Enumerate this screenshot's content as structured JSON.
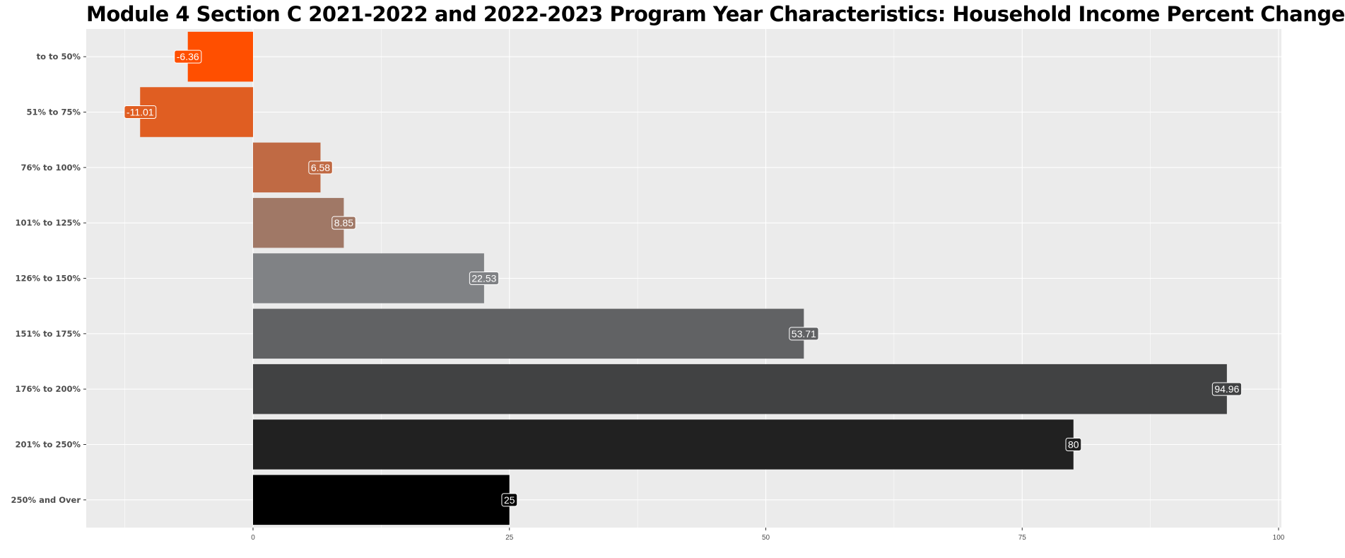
{
  "chart_data": {
    "type": "bar",
    "orientation": "horizontal",
    "title": "Module 4 Section C 2021-2022 and 2022-2023 Program Year Characteristics: Household Income Percent Change",
    "xlabel": "",
    "ylabel": "",
    "xlim": [
      -15,
      100
    ],
    "x_ticks": [
      0,
      25,
      50,
      75,
      100
    ],
    "grid": true,
    "legend": "none",
    "categories": [
      "to to 50%",
      "51% to 75%",
      "76% to 100%",
      "101% to 125%",
      "126% to 150%",
      "151% to 175%",
      "176% to 200%",
      "201% to 250%",
      "250% and Over"
    ],
    "values": [
      -6.36,
      -11.01,
      6.58,
      8.85,
      22.53,
      53.71,
      94.96,
      80,
      25
    ],
    "data_labels": [
      "-6.36",
      "-11.01",
      "6.58",
      "8.85",
      "22.53",
      "53.71",
      "94.96",
      "80",
      "25"
    ],
    "colors": [
      "#FF4F00",
      "#E05E22",
      "#C06A44",
      "#A07866",
      "#808285",
      "#616264",
      "#414243",
      "#212121",
      "#000000"
    ],
    "background_color": "#EBEBEB",
    "grid_color": "#FFFFFF"
  }
}
